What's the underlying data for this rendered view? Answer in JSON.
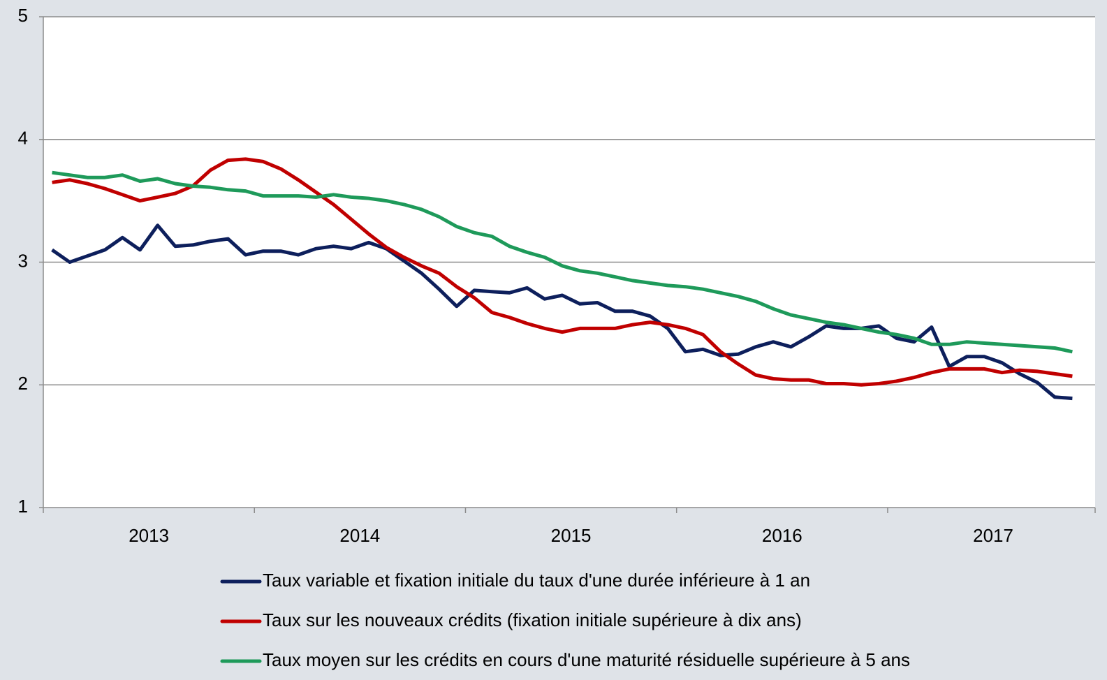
{
  "chart_data": {
    "type": "line",
    "categories": [
      null,
      null,
      null,
      null,
      null,
      null,
      "2013",
      null,
      null,
      null,
      null,
      null,
      null,
      null,
      null,
      null,
      null,
      null,
      "2014",
      null,
      null,
      null,
      null,
      null,
      null,
      null,
      null,
      null,
      null,
      null,
      "2015",
      null,
      null,
      null,
      null,
      null,
      null,
      null,
      null,
      null,
      null,
      null,
      "2016",
      null,
      null,
      null,
      null,
      null,
      null,
      null,
      null,
      null,
      null,
      null,
      "2017",
      null,
      null,
      null,
      null
    ],
    "series": [
      {
        "name": "Taux variable et fixation initiale du taux d'une durée inférieure à 1 an",
        "color": "#0d1f5c",
        "values": [
          3.1,
          3.0,
          3.05,
          3.1,
          3.2,
          3.1,
          3.3,
          3.13,
          3.14,
          3.17,
          3.19,
          3.06,
          3.09,
          3.09,
          3.06,
          3.11,
          3.13,
          3.11,
          3.16,
          3.11,
          3.01,
          2.91,
          2.78,
          2.64,
          2.77,
          2.76,
          2.75,
          2.79,
          2.7,
          2.73,
          2.66,
          2.67,
          2.6,
          2.6,
          2.56,
          2.46,
          2.27,
          2.29,
          2.24,
          2.25,
          2.31,
          2.35,
          2.31,
          2.39,
          2.48,
          2.46,
          2.46,
          2.48,
          2.38,
          2.35,
          2.47,
          2.15,
          2.23,
          2.23,
          2.18,
          2.09,
          2.02,
          1.9,
          1.89
        ]
      },
      {
        "name": "Taux sur les nouveaux crédits (fixation initiale supérieure à dix ans)",
        "color": "#c00000",
        "values": [
          3.65,
          3.67,
          3.64,
          3.6,
          3.55,
          3.5,
          3.53,
          3.56,
          3.62,
          3.75,
          3.83,
          3.84,
          3.82,
          3.76,
          3.67,
          3.57,
          3.47,
          3.35,
          3.23,
          3.12,
          3.04,
          2.97,
          2.91,
          2.8,
          2.71,
          2.59,
          2.55,
          2.5,
          2.46,
          2.43,
          2.46,
          2.46,
          2.46,
          2.49,
          2.51,
          2.49,
          2.46,
          2.41,
          2.27,
          2.17,
          2.08,
          2.05,
          2.04,
          2.04,
          2.01,
          2.01,
          2.0,
          2.01,
          2.03,
          2.06,
          2.1,
          2.13,
          2.13,
          2.13,
          2.1,
          2.12,
          2.11,
          2.09,
          2.07
        ]
      },
      {
        "name": "Taux moyen sur les crédits en cours d'une maturité résiduelle supérieure à 5 ans",
        "color": "#1e9a5a",
        "values": [
          3.73,
          3.71,
          3.69,
          3.69,
          3.71,
          3.66,
          3.68,
          3.64,
          3.62,
          3.61,
          3.59,
          3.58,
          3.54,
          3.54,
          3.54,
          3.53,
          3.55,
          3.53,
          3.52,
          3.5,
          3.47,
          3.43,
          3.37,
          3.29,
          3.24,
          3.21,
          3.13,
          3.08,
          3.04,
          2.97,
          2.93,
          2.91,
          2.88,
          2.85,
          2.83,
          2.81,
          2.8,
          2.78,
          2.75,
          2.72,
          2.68,
          2.62,
          2.57,
          2.54,
          2.51,
          2.49,
          2.46,
          2.43,
          2.41,
          2.38,
          2.33,
          2.33,
          2.35,
          2.34,
          2.33,
          2.32,
          2.31,
          2.3,
          2.27
        ]
      }
    ],
    "ylim": [
      1,
      5
    ],
    "yticks": [
      1,
      2,
      3,
      4,
      5
    ],
    "grid": true
  }
}
